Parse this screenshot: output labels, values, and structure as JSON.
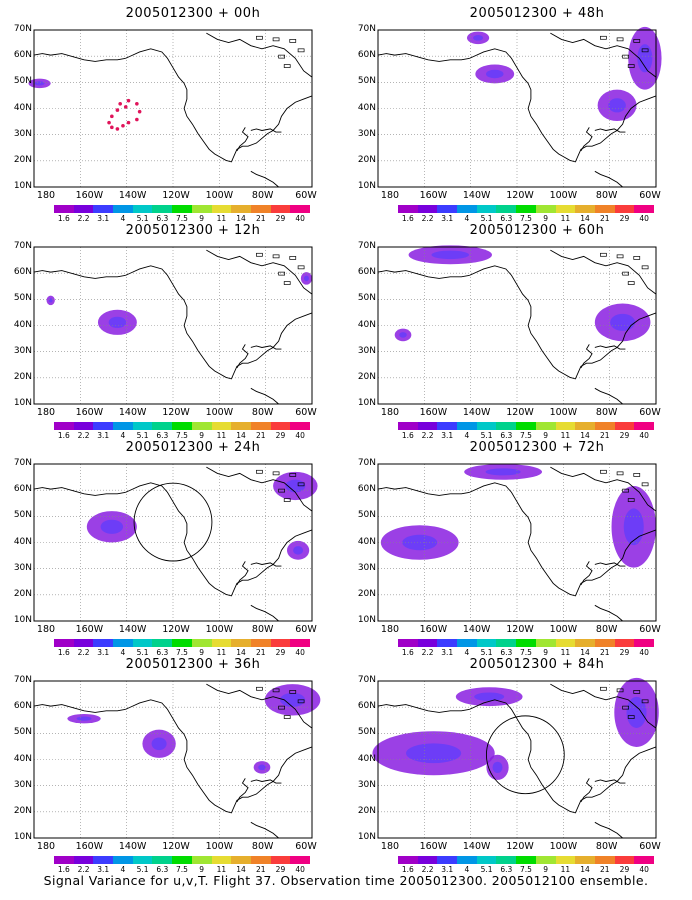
{
  "panels": [
    {
      "title": "2005012300 + 00h"
    },
    {
      "title": "2005012300 + 48h"
    },
    {
      "title": "2005012300 + 12h"
    },
    {
      "title": "2005012300 + 60h"
    },
    {
      "title": "2005012300 + 24h"
    },
    {
      "title": "2005012300 + 72h"
    },
    {
      "title": "2005012300 + 36h"
    },
    {
      "title": "2005012300 + 84h"
    }
  ],
  "lat_labels": [
    "70N",
    "60N",
    "50N",
    "40N",
    "30N",
    "20N",
    "10N"
  ],
  "lon_labels": [
    "180",
    "160W",
    "140W",
    "120W",
    "100W",
    "80W",
    "60W"
  ],
  "colorbar": {
    "labels": [
      "1.6",
      "2.2",
      "3.1",
      "4",
      "5.1",
      "6.3",
      "7.5",
      "9",
      "11",
      "14",
      "21",
      "29",
      "40"
    ],
    "colors": [
      "#a000c8",
      "#7800dc",
      "#3c3cff",
      "#0096e6",
      "#00c8c8",
      "#00d28c",
      "#00dc00",
      "#a0e632",
      "#e6dc32",
      "#e6af2d",
      "#f08228",
      "#fa3c3c",
      "#f00082"
    ]
  },
  "caption": "Signal Variance for u,v,T. Flight 37. Observation time 2005012300. 2005012100 ensemble."
}
